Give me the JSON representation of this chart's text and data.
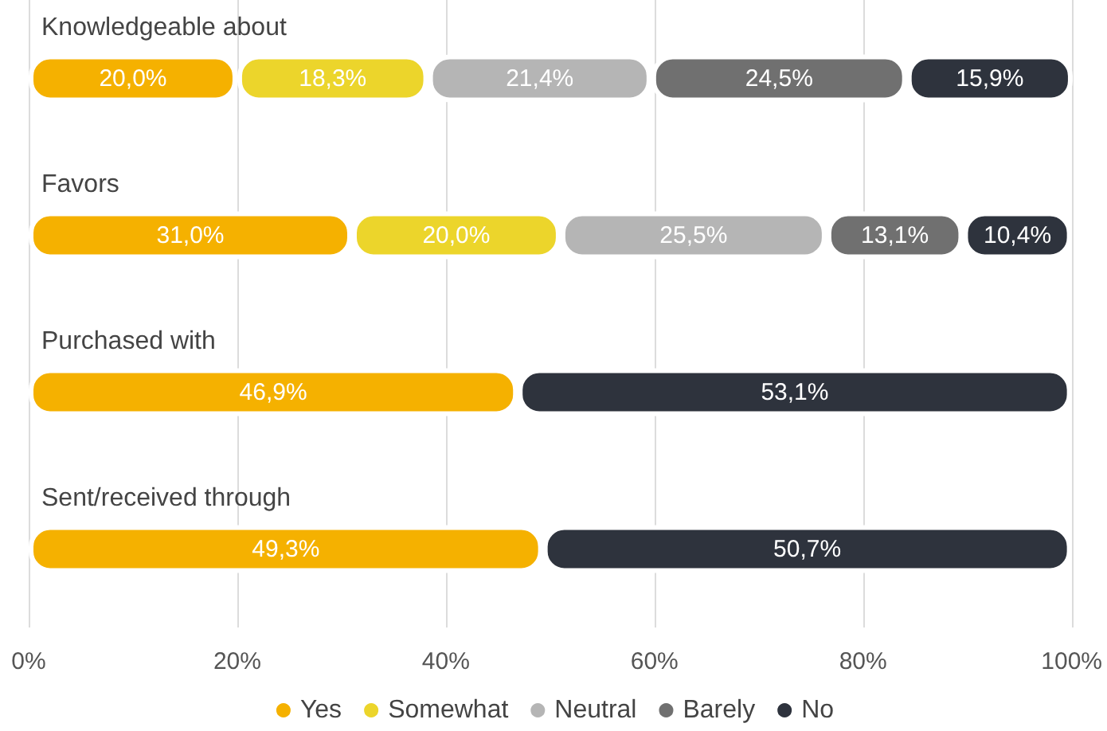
{
  "chart_data": {
    "type": "bar",
    "orientation": "horizontal",
    "stacked": true,
    "categories": [
      "Knowledgeable about",
      "Favors",
      "Purchased with",
      "Sent/received through"
    ],
    "series": [
      {
        "name": "Yes",
        "color": "#f5b100",
        "values": [
          20.0,
          31.0,
          46.9,
          49.3
        ],
        "value_labels": [
          "20,0%",
          "31,0%",
          "46,9%",
          "49,3%"
        ]
      },
      {
        "name": "Somewhat",
        "color": "#ecd52b",
        "values": [
          18.3,
          20.0,
          null,
          null
        ],
        "value_labels": [
          "18,3%",
          "20,0%",
          null,
          null
        ]
      },
      {
        "name": "Neutral",
        "color": "#b5b5b5",
        "values": [
          21.4,
          25.5,
          null,
          null
        ],
        "value_labels": [
          "21,4%",
          "25,5%",
          null,
          null
        ]
      },
      {
        "name": "Barely",
        "color": "#707070",
        "values": [
          24.5,
          13.1,
          null,
          null
        ],
        "value_labels": [
          "24,5%",
          "13,1%",
          null,
          null
        ]
      },
      {
        "name": "No",
        "color": "#2e333d",
        "values": [
          15.9,
          10.4,
          53.1,
          50.7
        ],
        "value_labels": [
          "15,9%",
          "10,4%",
          "53,1%",
          "50,7%"
        ]
      }
    ],
    "xlim": [
      0,
      100
    ],
    "xticks": [
      {
        "value": 0,
        "label": "0%"
      },
      {
        "value": 20,
        "label": "20%"
      },
      {
        "value": 40,
        "label": "40%"
      },
      {
        "value": 60,
        "label": "60%"
      },
      {
        "value": 80,
        "label": "80%"
      },
      {
        "value": 100,
        "label": "100%"
      }
    ],
    "grid": "x",
    "legend": "bottom"
  }
}
